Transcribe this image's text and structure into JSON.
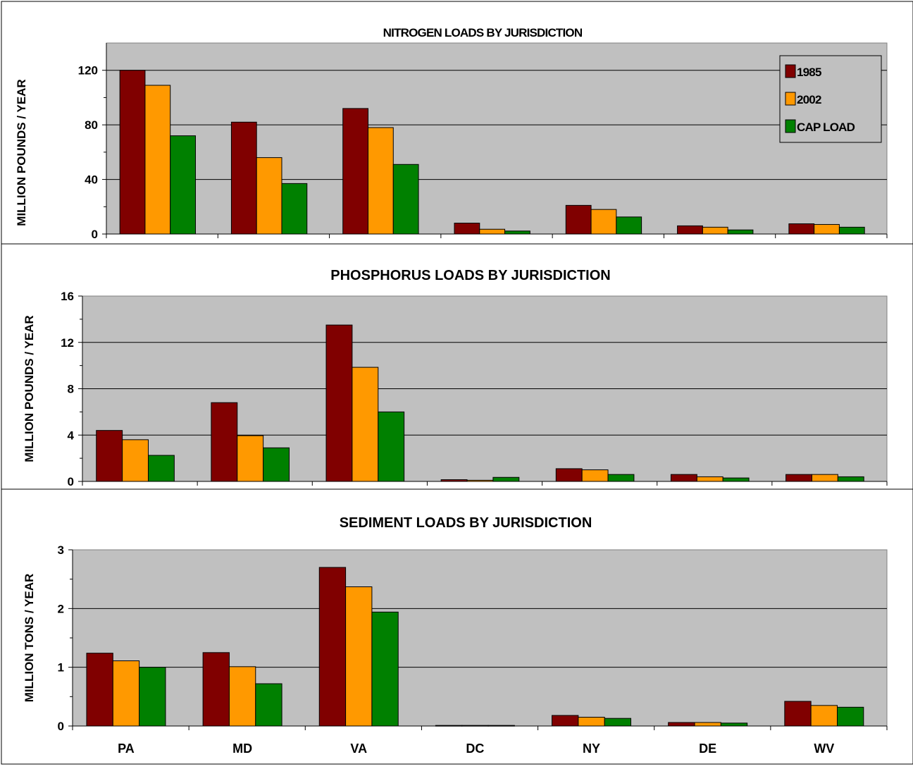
{
  "legend": [
    {
      "name": "1985",
      "color": "#800000"
    },
    {
      "name": "2002",
      "color": "#ff9900"
    },
    {
      "name": "CAP LOAD",
      "color": "#008000"
    }
  ],
  "chart_data": [
    {
      "type": "bar",
      "title": "NITROGEN LOADS BY JURISDICTION",
      "ylabel": "MILLION POUNDS / YEAR",
      "ylim": [
        0,
        140
      ],
      "yticks": [
        0,
        40,
        80,
        120
      ],
      "grid": true,
      "legend_position": "top-right",
      "categories": [
        "PA",
        "MD",
        "VA",
        "DC",
        "NY",
        "DE",
        "WV"
      ],
      "series": [
        {
          "name": "1985",
          "values": [
            120,
            82,
            92,
            8,
            21,
            6,
            7.5
          ]
        },
        {
          "name": "2002",
          "values": [
            109,
            56,
            78,
            3.5,
            18,
            5,
            7
          ]
        },
        {
          "name": "CAP LOAD",
          "values": [
            72,
            37,
            51,
            2.2,
            12.5,
            3,
            5
          ]
        }
      ]
    },
    {
      "type": "bar",
      "title": "PHOSPHORUS LOADS BY JURISDICTION",
      "ylabel": "MILLION POUNDS / YEAR",
      "ylim": [
        0,
        16
      ],
      "yticks": [
        0,
        4,
        8,
        12,
        16
      ],
      "grid": true,
      "categories": [
        "PA",
        "MD",
        "VA",
        "DC",
        "NY",
        "DE",
        "WV"
      ],
      "series": [
        {
          "name": "1985",
          "values": [
            4.4,
            6.8,
            13.5,
            0.15,
            1.1,
            0.6,
            0.6
          ]
        },
        {
          "name": "2002",
          "values": [
            3.6,
            3.95,
            9.85,
            0.1,
            1.0,
            0.4,
            0.6
          ]
        },
        {
          "name": "CAP LOAD",
          "values": [
            2.25,
            2.9,
            6.0,
            0.35,
            0.6,
            0.3,
            0.4
          ]
        }
      ]
    },
    {
      "type": "bar",
      "title": "SEDIMENT LOADS BY JURISDICTION",
      "ylabel": "MILLION TONS / YEAR",
      "ylim": [
        0,
        3
      ],
      "yticks": [
        0,
        1,
        2,
        3
      ],
      "grid": true,
      "categories": [
        "PA",
        "MD",
        "VA",
        "DC",
        "NY",
        "DE",
        "WV"
      ],
      "series": [
        {
          "name": "1985",
          "values": [
            1.24,
            1.25,
            2.7,
            0.01,
            0.18,
            0.06,
            0.42
          ]
        },
        {
          "name": "2002",
          "values": [
            1.11,
            1.01,
            2.37,
            0.01,
            0.15,
            0.06,
            0.35
          ]
        },
        {
          "name": "CAP LOAD",
          "values": [
            1.0,
            0.72,
            1.94,
            0.01,
            0.13,
            0.05,
            0.32
          ]
        }
      ]
    }
  ]
}
